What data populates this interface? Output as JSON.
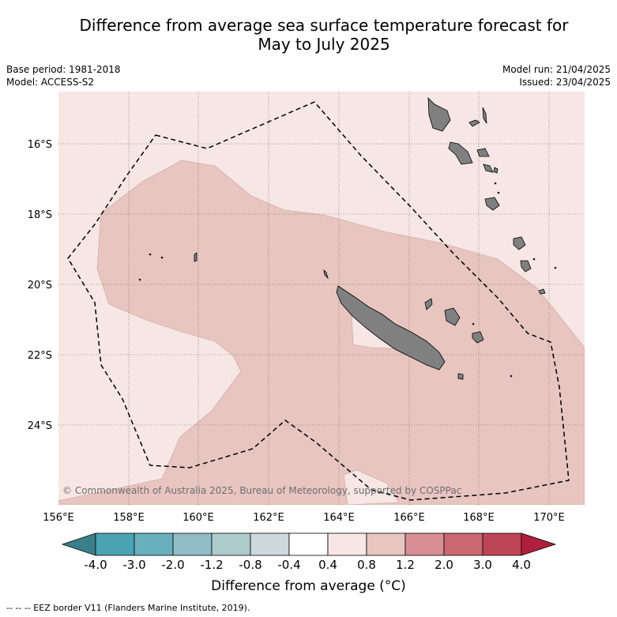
{
  "title_line1": "Difference from average sea surface temperature forecast for",
  "title_line2": "May to July 2025",
  "base_period": "Base period: 1981-2018",
  "model": "Model: ACCESS-S2",
  "model_run": "Model run: 21/04/2025",
  "issued": "Issued: 23/04/2025",
  "copyright": "© Commonwealth of Australia 2025, Bureau of Meteorology, supported by COSPPac",
  "lon_ticks": [
    "156°E",
    "158°E",
    "160°E",
    "162°E",
    "164°E",
    "166°E",
    "168°E",
    "170°E"
  ],
  "lat_ticks": [
    "16°S",
    "18°S",
    "20°S",
    "22°S",
    "24°S"
  ],
  "colorbar": {
    "label": "Difference from average (°C)",
    "ticks": [
      "-4.0",
      "-3.0",
      "-2.0",
      "-1.2",
      "-0.8",
      "-0.4",
      "0.4",
      "0.8",
      "1.2",
      "2.0",
      "3.0",
      "4.0"
    ],
    "colors": [
      "#4aa3b2",
      "#6aafbd",
      "#8fbcc6",
      "#adcacd",
      "#cdd8da",
      "#ffffff",
      "#f6e6e4",
      "#e8c5c0",
      "#d78f95",
      "#cb6771",
      "#bd4656"
    ],
    "under_color": "#3a7f8a",
    "over_color": "#b0203d"
  },
  "legend_text": "--  --  -- EEZ border V11 (Flanders Marine Institute, 2019).",
  "map": {
    "lon_range": [
      156,
      171
    ],
    "lat_range": [
      -26.3,
      -14.8
    ],
    "ocean_color": "#f6e6e4",
    "anomaly_color": "#e8c5c0",
    "land_color": "#808080"
  }
}
